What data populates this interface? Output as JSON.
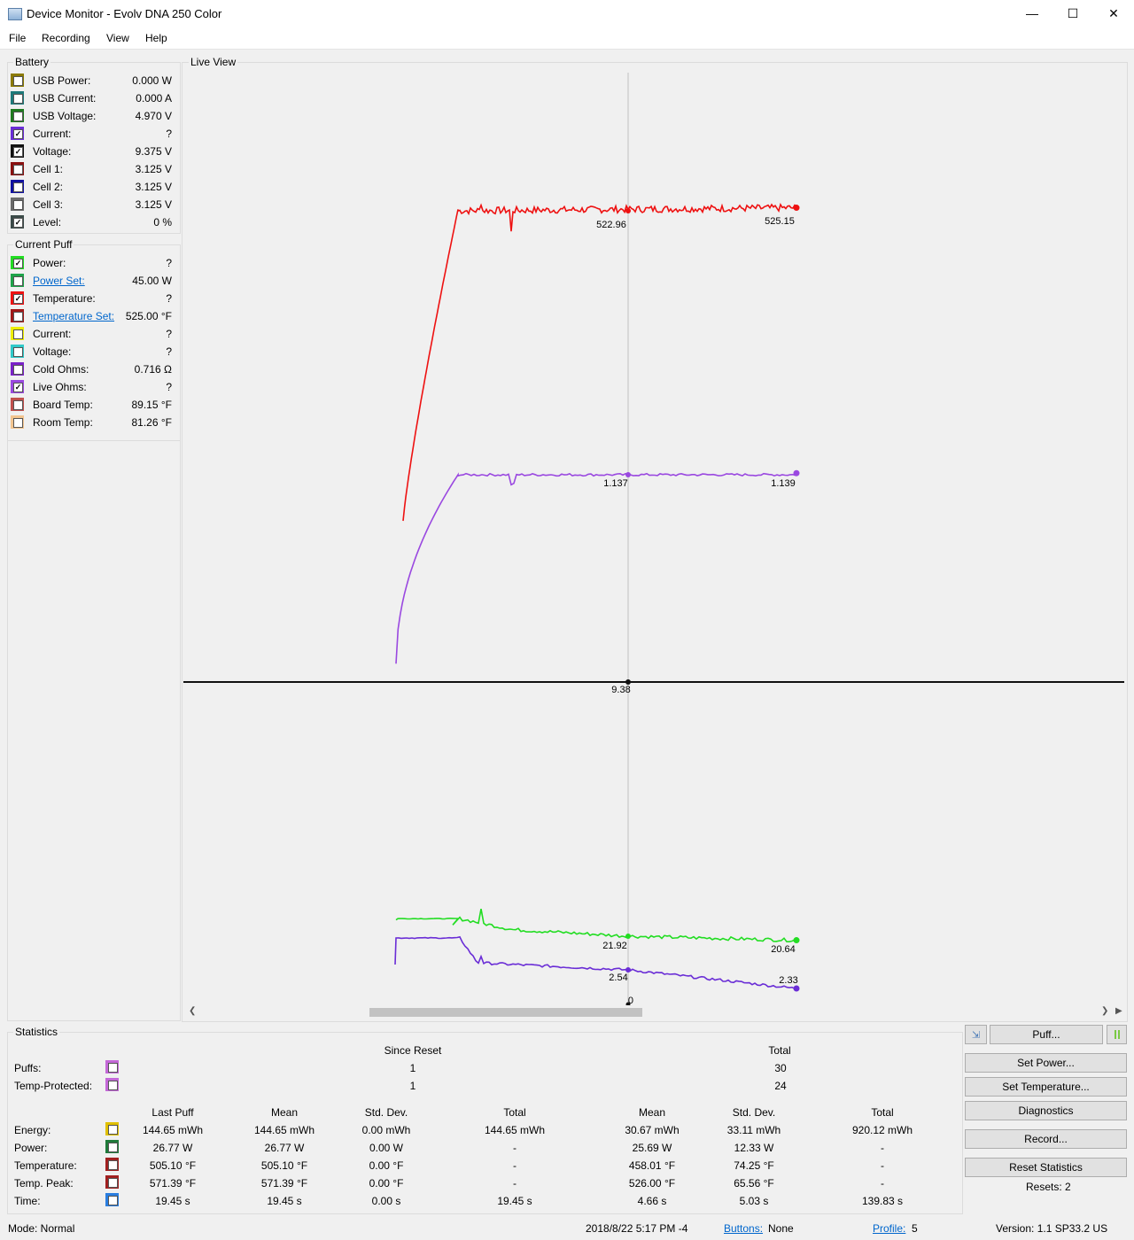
{
  "window": {
    "title": "Device Monitor - Evolv DNA 250 Color"
  },
  "menu": {
    "file": "File",
    "recording": "Recording",
    "view": "View",
    "help": "Help"
  },
  "battery": {
    "label": "Battery",
    "rows": [
      {
        "label": "USB Power:",
        "value": "0.000 W",
        "color": "#8b7a00",
        "checked": false
      },
      {
        "label": "USB Current:",
        "value": "0.000 A",
        "color": "#1e7a7a",
        "checked": false
      },
      {
        "label": "USB Voltage:",
        "value": "4.970 V",
        "color": "#1f7a1f",
        "checked": false
      },
      {
        "label": "Current:",
        "value": "?",
        "color": "#6a2dd6",
        "checked": true
      },
      {
        "label": "Voltage:",
        "value": "9.375 V",
        "color": "#111111",
        "checked": true
      },
      {
        "label": "Cell 1:",
        "value": "3.125 V",
        "color": "#8a1111",
        "checked": false
      },
      {
        "label": "Cell 2:",
        "value": "3.125 V",
        "color": "#1111a0",
        "checked": false
      },
      {
        "label": "Cell 3:",
        "value": "3.125 V",
        "color": "#6b6b6b",
        "checked": false
      },
      {
        "label": "Level:",
        "value": "0 %",
        "color": "#3b4a48",
        "checked": true
      }
    ]
  },
  "current_puff": {
    "label": "Current Puff",
    "rows": [
      {
        "label": "Power:",
        "value": "?",
        "color": "#22dd22",
        "checked": true
      },
      {
        "label": "Power Set:",
        "value": "45.00 W",
        "color": "#1fa34a",
        "checked": false,
        "link": true
      },
      {
        "label": "Temperature:",
        "value": "?",
        "color": "#ee1111",
        "checked": true
      },
      {
        "label": "Temperature Set:",
        "value": "525.00 °F",
        "color": "#a01818",
        "checked": false,
        "link": true
      },
      {
        "label": "Current:",
        "value": "?",
        "color": "#eeee00",
        "checked": false
      },
      {
        "label": "Voltage:",
        "value": "?",
        "color": "#30c9c9",
        "checked": false
      },
      {
        "label": "Cold Ohms:",
        "value": "0.716 Ω",
        "color": "#7a22c8",
        "checked": false
      },
      {
        "label": "Live Ohms:",
        "value": "?",
        "color": "#9a48e0",
        "checked": true
      },
      {
        "label": "Board Temp:",
        "value": "89.15 °F",
        "color": "#c0504d",
        "checked": false
      },
      {
        "label": "Room Temp:",
        "value": "81.26 °F",
        "color": "#f2c48f",
        "checked": false
      }
    ]
  },
  "live_view": {
    "label": "Live View",
    "cursor_labels": [
      {
        "series": "temperature",
        "text": "522.96"
      },
      {
        "series": "temperature",
        "text": "525.15"
      },
      {
        "series": "live_ohms",
        "text": "1.137"
      },
      {
        "series": "live_ohms",
        "text": "1.139"
      },
      {
        "series": "voltage",
        "text": "9.38"
      },
      {
        "series": "power",
        "text": "21.92"
      },
      {
        "series": "power",
        "text": "20.64"
      },
      {
        "series": "current",
        "text": "2.54"
      },
      {
        "series": "current",
        "text": "2.33"
      },
      {
        "series": "baseline",
        "text": "0"
      }
    ]
  },
  "chart_data": {
    "type": "line",
    "grid": false,
    "legend": "none",
    "series": [
      {
        "key": "temperature",
        "color": "#ee1111",
        "cursor_value": 522.96,
        "end_value": 525.15,
        "ramp_start": 300
      },
      {
        "key": "live_ohms",
        "color": "#9a48e0",
        "cursor_value": 1.137,
        "end_value": 1.139,
        "ramp_start": 0.9
      },
      {
        "key": "voltage",
        "color": "#111111",
        "cursor_value": 9.38,
        "end_value": 9.38
      },
      {
        "key": "power",
        "color": "#22dd22",
        "start_value": 27.5,
        "cursor_value": 21.92,
        "end_value": 20.64
      },
      {
        "key": "current",
        "color": "#6a2dd6",
        "start_value": 2.9,
        "cursor_value": 2.54,
        "end_value": 2.33
      }
    ]
  },
  "statistics": {
    "label": "Statistics",
    "since_reset": "Since Reset",
    "total": "Total",
    "counts": [
      {
        "label": "Puffs:",
        "since_reset": "1",
        "total": "30",
        "color": "#c468d8"
      },
      {
        "label": "Temp-Protected:",
        "since_reset": "1",
        "total": "24",
        "color": "#c468d8"
      }
    ],
    "columns": [
      "Last Puff",
      "Mean",
      "Std. Dev.",
      "Total",
      "Mean",
      "Std. Dev.",
      "Total"
    ],
    "rows": [
      {
        "label": "Energy:",
        "color": "#e0c000",
        "values": [
          "144.65 mWh",
          "144.65 mWh",
          "0.00 mWh",
          "144.65 mWh",
          "30.67 mWh",
          "33.11 mWh",
          "920.12 mWh"
        ]
      },
      {
        "label": "Power:",
        "color": "#1f7a3a",
        "values": [
          "26.77 W",
          "26.77 W",
          "0.00 W",
          "-",
          "25.69 W",
          "12.33 W",
          "-"
        ]
      },
      {
        "label": "Temperature:",
        "color": "#a02020",
        "values": [
          "505.10 °F",
          "505.10 °F",
          "0.00 °F",
          "-",
          "458.01 °F",
          "74.25 °F",
          "-"
        ]
      },
      {
        "label": "Temp. Peak:",
        "color": "#a02020",
        "values": [
          "571.39 °F",
          "571.39 °F",
          "0.00 °F",
          "-",
          "526.00 °F",
          "65.56 °F",
          "-"
        ]
      },
      {
        "label": "Time:",
        "color": "#2a7ee0",
        "values": [
          "19.45 s",
          "19.45 s",
          "0.00 s",
          "19.45 s",
          "4.66 s",
          "5.03 s",
          "139.83 s"
        ]
      }
    ]
  },
  "buttons": {
    "puff": "Puff...",
    "set_power": "Set Power...",
    "set_temperature": "Set Temperature...",
    "diagnostics": "Diagnostics",
    "record": "Record...",
    "reset_statistics": "Reset Statistics",
    "resets": "Resets: 2"
  },
  "status": {
    "mode": "Mode: Normal",
    "datetime": "2018/8/22 5:17 PM -4",
    "buttons_label": "Buttons:",
    "buttons_value": "None",
    "profile_label": "Profile:",
    "profile_value": "5",
    "version": "Version: 1.1 SP33.2 US"
  }
}
